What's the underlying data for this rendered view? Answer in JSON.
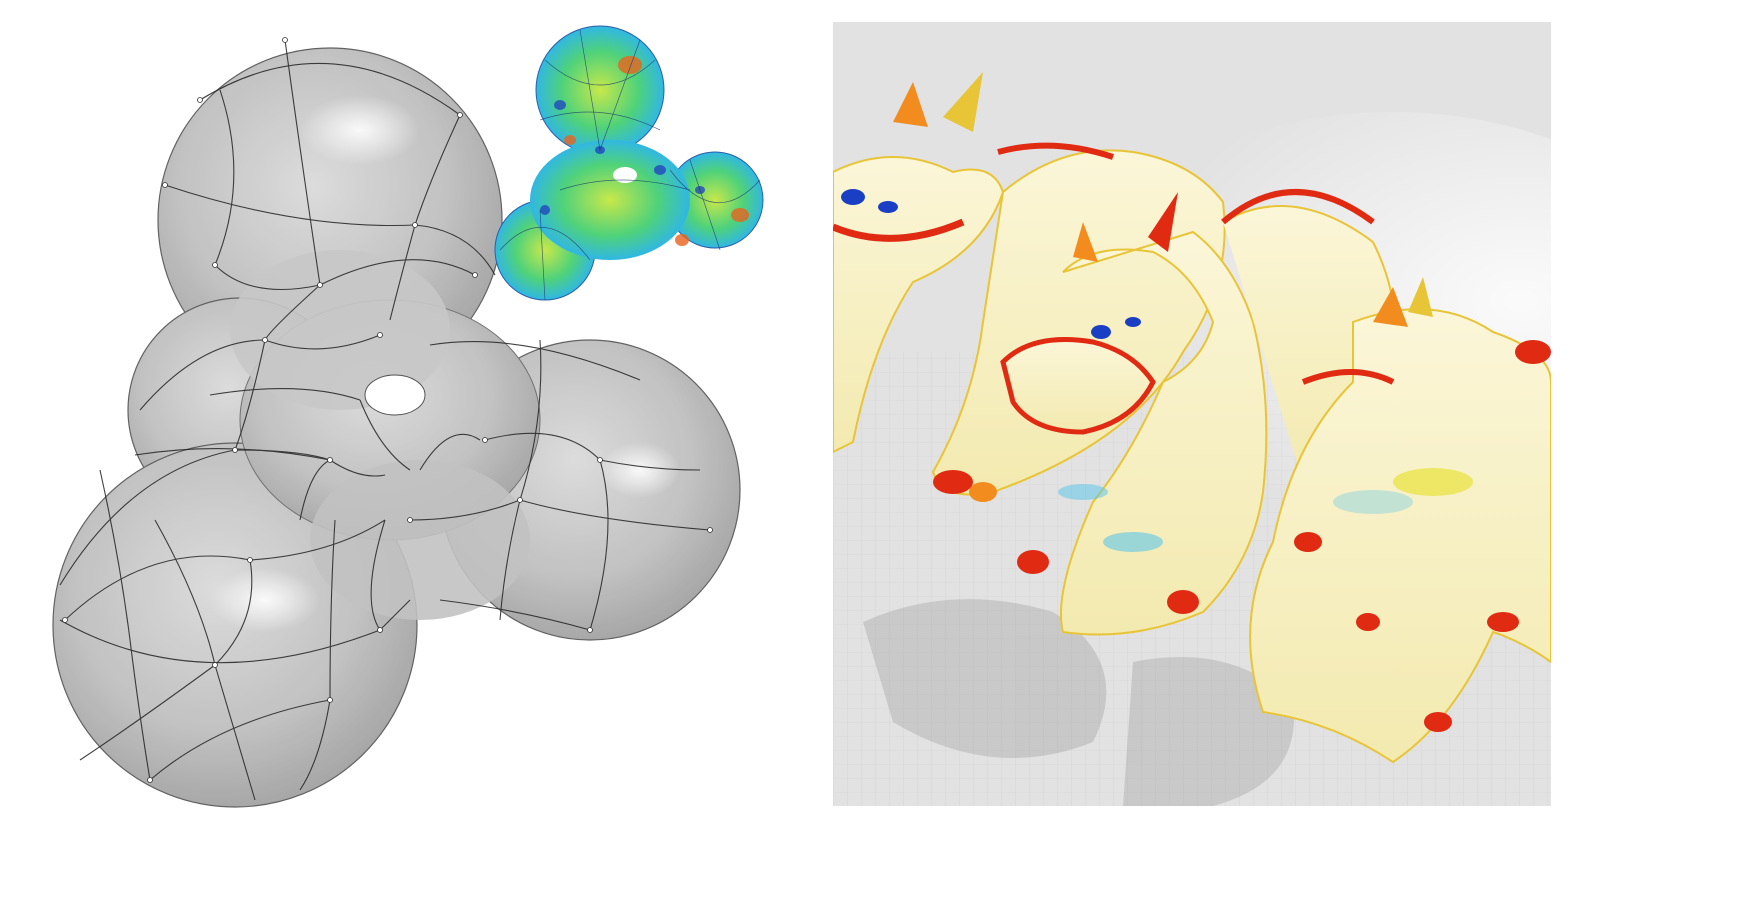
{
  "figure": {
    "left_panel": {
      "subject": "sphere-mesh-wireframe",
      "main_shape_color": "#b3b3b3",
      "edge_color": "#222222",
      "inset": {
        "subject": "heatmap-shaded-mesh",
        "colors": [
          "#1f3fbf",
          "#2fb6e8",
          "#4fd27a",
          "#c8e84a",
          "#f2d02a",
          "#e8641e",
          "#c41f1f"
        ]
      }
    },
    "right_panel": {
      "subject": "voxelized-dragons-heatmap",
      "floor_color": "#e6e6e6",
      "body_color": "#f7f2d0",
      "highlight_colors": [
        "#e8e23a",
        "#f28c1e",
        "#e02a12",
        "#5fc7ea",
        "#1b3fc4"
      ]
    }
  }
}
